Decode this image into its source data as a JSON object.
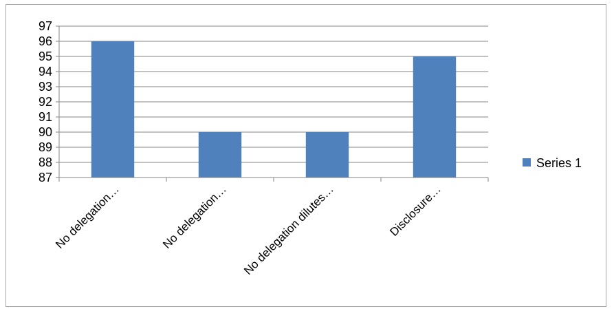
{
  "chart_data": {
    "type": "bar",
    "categories": [
      "No delegation…",
      "No delegation…",
      "No delegation dilutes…",
      "Disclosure…"
    ],
    "series": [
      {
        "name": "Series 1",
        "values": [
          96,
          90,
          90,
          95
        ],
        "color": "#4f81bd"
      }
    ],
    "title": "",
    "xlabel": "",
    "ylabel": "",
    "ylim": [
      87,
      97
    ],
    "yticks": [
      87,
      88,
      89,
      90,
      91,
      92,
      93,
      94,
      95,
      96,
      97
    ],
    "grid": true,
    "legend_position": "right",
    "gridline_color": "#868686",
    "axis_color": "#868686"
  }
}
